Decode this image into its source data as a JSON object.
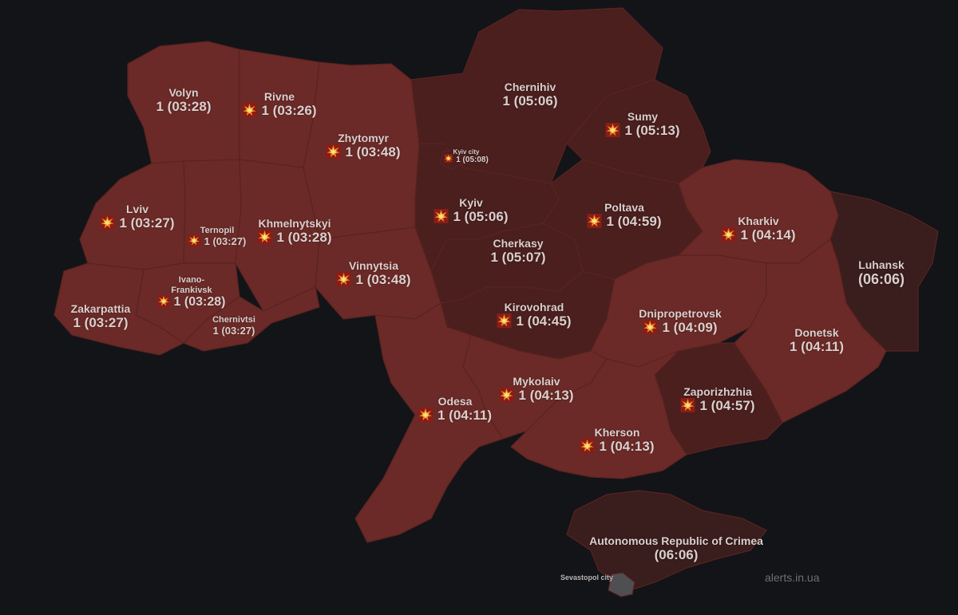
{
  "colors": {
    "background": "#121418",
    "alert_light": "#6b2a27",
    "alert_dark": "#4a1f1e",
    "occupied": "#3a1d1d",
    "sevastopol": "#4f4f53",
    "label": "#d9cfcd"
  },
  "icon_name": "explosion-icon",
  "regions": [
    {
      "id": "volyn",
      "name": "Volyn",
      "value": "1 (03:28)",
      "icon": false
    },
    {
      "id": "rivne",
      "name": "Rivne",
      "value": "1 (03:26)",
      "icon": true
    },
    {
      "id": "zhytomyr",
      "name": "Zhytomyr",
      "value": "1 (03:48)",
      "icon": true
    },
    {
      "id": "kyiv-city",
      "name": "Kyiv city",
      "value": "1 (05:08)",
      "icon": true
    },
    {
      "id": "chernihiv",
      "name": "Chernihiv",
      "value": "1 (05:06)",
      "icon": false
    },
    {
      "id": "sumy",
      "name": "Sumy",
      "value": "1 (05:13)",
      "icon": true
    },
    {
      "id": "lviv",
      "name": "Lviv",
      "value": "1 (03:27)",
      "icon": true
    },
    {
      "id": "ternopil",
      "name": "Ternopil",
      "value": "1 (03:27)",
      "icon": true
    },
    {
      "id": "khmelnytskyi",
      "name": "Khmelnytskyi",
      "value": "1 (03:28)",
      "icon": true
    },
    {
      "id": "kyiv",
      "name": "Kyiv",
      "value": "1 (05:06)",
      "icon": true
    },
    {
      "id": "poltava",
      "name": "Poltava",
      "value": "1 (04:59)",
      "icon": true
    },
    {
      "id": "kharkiv",
      "name": "Kharkiv",
      "value": "1 (04:14)",
      "icon": true
    },
    {
      "id": "luhansk",
      "name": "Luhansk",
      "value": "(06:06)",
      "icon": false
    },
    {
      "id": "cherkasy",
      "name": "Cherkasy",
      "value": "1 (05:07)",
      "icon": false
    },
    {
      "id": "vinnytsia",
      "name": "Vinnytsia",
      "value": "1 (03:48)",
      "icon": true
    },
    {
      "id": "ivano-frankivsk",
      "name": "Ivano-\nFrankivsk",
      "value": "1 (03:28)",
      "icon": true
    },
    {
      "id": "zakarpattia",
      "name": "Zakarpattia",
      "value": "1 (03:27)",
      "icon": false
    },
    {
      "id": "chernivtsi",
      "name": "Chernivtsi",
      "value": "1 (03:27)",
      "icon": false
    },
    {
      "id": "kirovohrad",
      "name": "Kirovohrad",
      "value": "1 (04:45)",
      "icon": true
    },
    {
      "id": "dnipropetrovsk",
      "name": "Dnipropetrovsk",
      "value": "1 (04:09)",
      "icon": true
    },
    {
      "id": "donetsk",
      "name": "Donetsk",
      "value": "1 (04:11)",
      "icon": false
    },
    {
      "id": "mykolaiv",
      "name": "Mykolaiv",
      "value": "1 (04:13)",
      "icon": true
    },
    {
      "id": "odesa",
      "name": "Odesa",
      "value": "1 (04:11)",
      "icon": true
    },
    {
      "id": "zaporizhzhia",
      "name": "Zaporizhzhia",
      "value": "1 (04:57)",
      "icon": true
    },
    {
      "id": "kherson",
      "name": "Kherson",
      "value": "1 (04:13)",
      "icon": true
    },
    {
      "id": "crimea",
      "name": "Autonomous Republic of Crimea",
      "value": "(06:06)",
      "icon": false
    }
  ],
  "sevastopol_label": "Sevastopol city",
  "watermark": "alerts.in.ua"
}
